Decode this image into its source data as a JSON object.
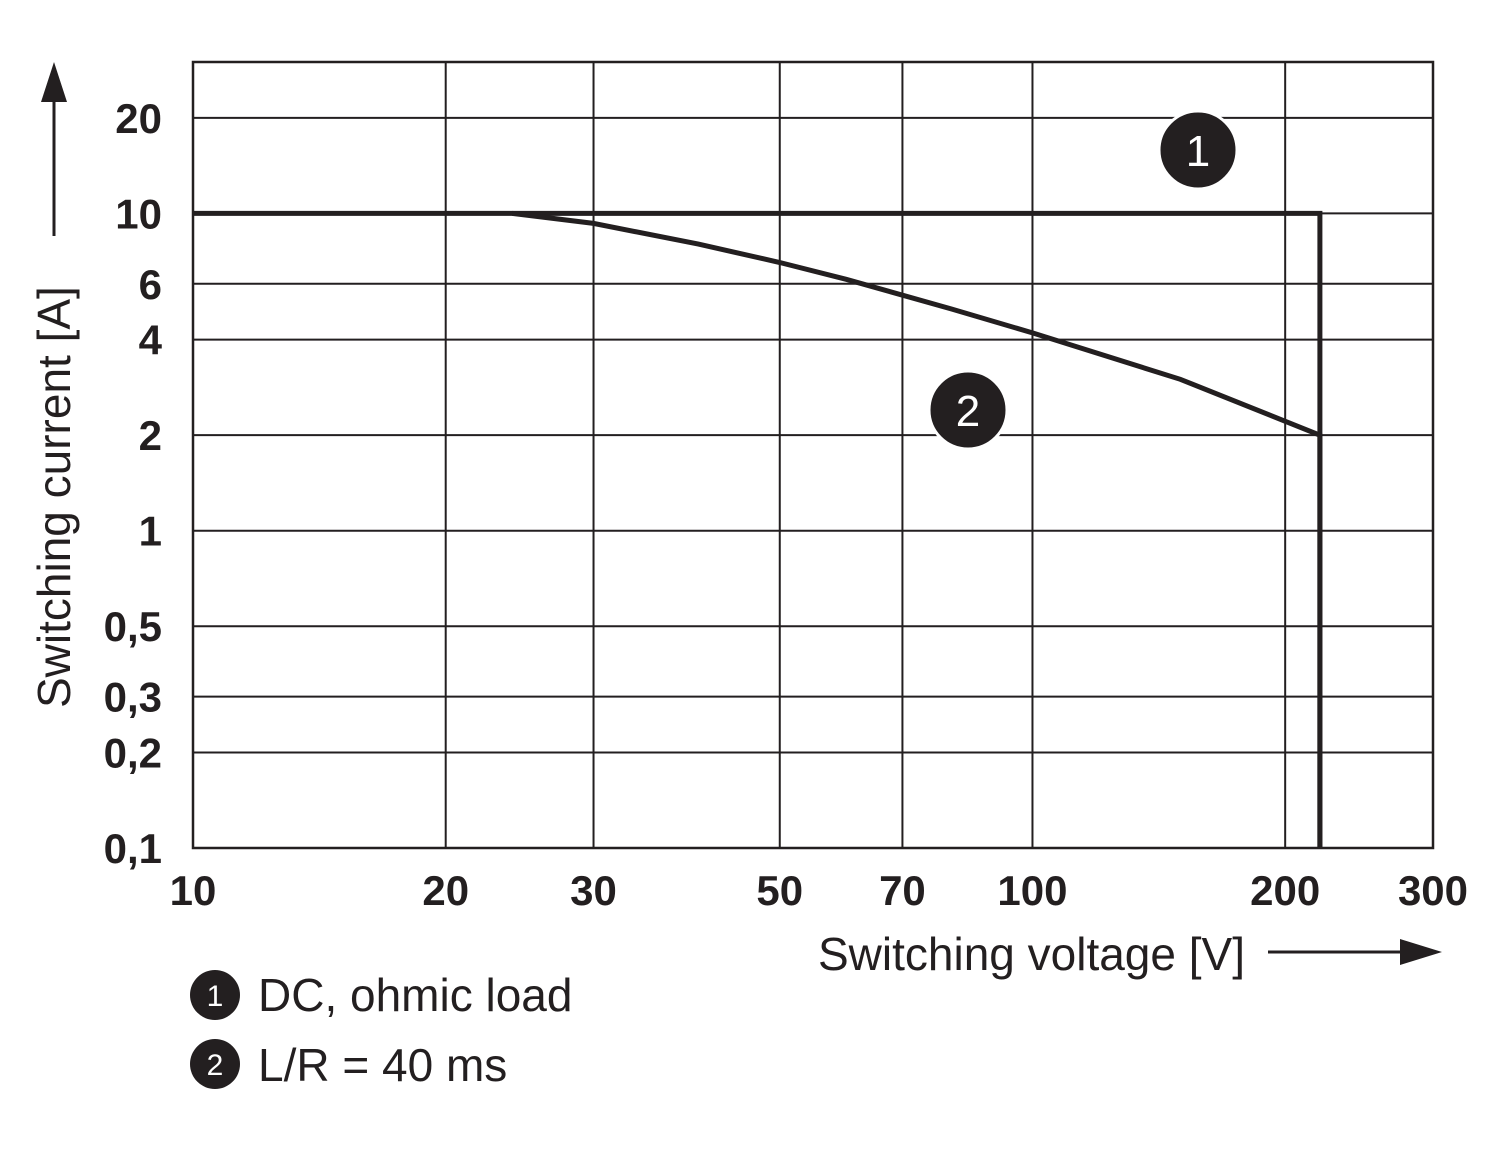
{
  "chart_data": {
    "type": "line",
    "xlabel": "Switching voltage [V]",
    "ylabel": "Switching current [A]",
    "x_scale": "log",
    "y_scale": "log",
    "xlim": [
      10,
      300
    ],
    "ylim": [
      0.1,
      30
    ],
    "x_ticks": [
      "10",
      "20",
      "30",
      "50",
      "70",
      "100",
      "200",
      "300"
    ],
    "y_ticks": [
      "20",
      "10",
      "6",
      "4",
      "2",
      "1",
      "0,5",
      "0,3",
      "0,2",
      "0,1"
    ],
    "grid": true,
    "series": [
      {
        "marker": "1",
        "name": "DC, ohmic load",
        "x": [
          10,
          220,
          220
        ],
        "y": [
          10,
          10,
          0.1
        ]
      },
      {
        "marker": "2",
        "name": "L/R = 40 ms",
        "x": [
          24,
          30,
          40,
          50,
          60,
          80,
          100,
          150,
          220,
          220
        ],
        "y": [
          10,
          9.3,
          8.0,
          7.0,
          6.2,
          5.0,
          4.2,
          3.0,
          2.0,
          0.1
        ]
      }
    ],
    "legend": [
      {
        "marker": "1",
        "label": "DC, ohmic load"
      },
      {
        "marker": "2",
        "label": "L/R = 40 ms"
      }
    ]
  }
}
